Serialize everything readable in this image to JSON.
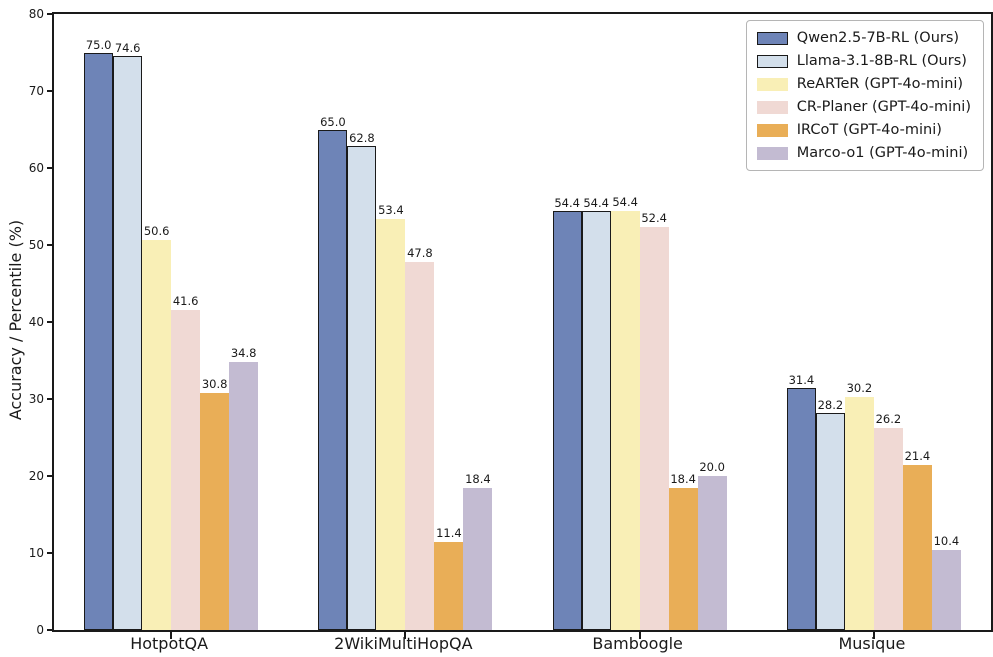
{
  "chart_data": {
    "type": "bar",
    "title": "",
    "xlabel": "",
    "ylabel": "Accuracy / Percentile (%)",
    "ylim": [
      0,
      80
    ],
    "yticks": [
      0,
      10,
      20,
      30,
      40,
      50,
      60,
      70,
      80
    ],
    "grid": false,
    "legend_position": "upper right",
    "value_label_format": "one_decimal",
    "categories": [
      "HotpotQA",
      "2WikiMultiHopQA",
      "Bamboogle",
      "Musique"
    ],
    "series": [
      {
        "name": "Qwen2.5-7B-RL (Ours)",
        "fill": "#6e84b7",
        "edge": "#1a1a1a",
        "values": [
          75.0,
          65.0,
          54.4,
          31.4
        ]
      },
      {
        "name": "Llama-3.1-8B-RL (Ours)",
        "fill": "#d3dfeb",
        "edge": "#1a1a1a",
        "values": [
          74.6,
          62.8,
          54.4,
          28.2
        ]
      },
      {
        "name": "ReARTeR (GPT-4o-mini)",
        "fill": "#f9efb6",
        "edge": "",
        "values": [
          50.6,
          53.4,
          54.4,
          30.2
        ]
      },
      {
        "name": "CR-Planer (GPT-4o-mini)",
        "fill": "#f0d9d4",
        "edge": "",
        "values": [
          41.6,
          47.8,
          52.4,
          26.2
        ]
      },
      {
        "name": "IRCoT (GPT-4o-mini)",
        "fill": "#e9ae57",
        "edge": "",
        "values": [
          30.8,
          11.4,
          18.4,
          21.4
        ]
      },
      {
        "name": "Marco-o1 (GPT-4o-mini)",
        "fill": "#c3bbd2",
        "edge": "",
        "values": [
          34.8,
          18.4,
          20.0,
          10.4
        ]
      }
    ],
    "colors": {
      "spine": "#1a1a1a",
      "text": "#1a1a1a",
      "legend_border": "#b5b5b5",
      "background": "#ffffff"
    }
  }
}
